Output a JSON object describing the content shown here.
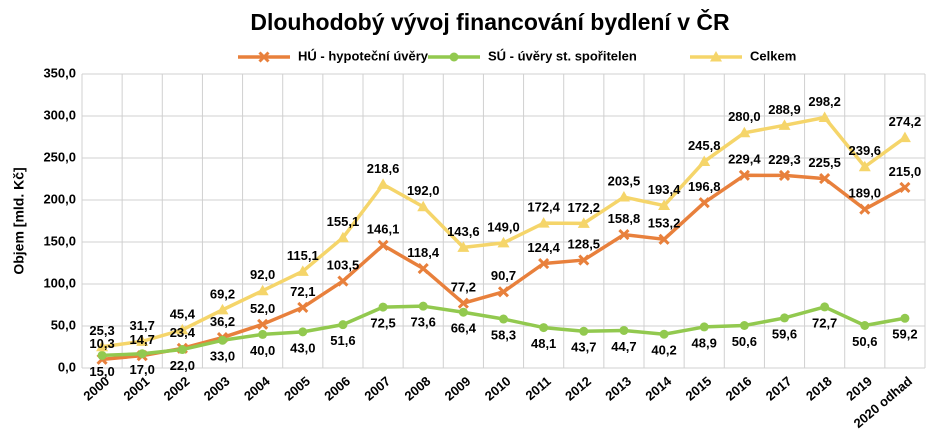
{
  "chart_data": {
    "type": "line",
    "title": "Dlouhodobý vývoj financování bydlení v ČR",
    "y_label": "Objem [mld. Kč]",
    "categories": [
      "2000",
      "2001",
      "2002",
      "2003",
      "2004",
      "2005",
      "2006",
      "2007",
      "2008",
      "2009",
      "2010",
      "2011",
      "2012",
      "2013",
      "2014",
      "2015",
      "2016",
      "2017",
      "2018",
      "2019",
      "2020 odhad"
    ],
    "series": [
      {
        "name": "HÚ - hypoteční úvěry",
        "color": "#e8803c",
        "marker": "x",
        "label_pos": "above",
        "values": [
          10.3,
          14.7,
          23.4,
          36.2,
          52.0,
          72.1,
          103.5,
          146.1,
          118.4,
          77.2,
          90.7,
          124.4,
          128.5,
          158.8,
          153.2,
          196.8,
          229.4,
          229.3,
          225.5,
          189.0,
          215.0
        ],
        "value_labels": [
          "10,3",
          "14,7",
          "23,4",
          "36,2",
          "52,0",
          "72,1",
          "103,5",
          "146,1",
          "118,4",
          "77,2",
          "90,7",
          "124,4",
          "128,5",
          "158,8",
          "153,2",
          "196,8",
          "229,4",
          "229,3",
          "225,5",
          "189,0",
          "215,0"
        ]
      },
      {
        "name": "SÚ - úvěry st. spořitelen",
        "color": "#92c94f",
        "marker": "circle",
        "label_pos": "below",
        "values": [
          15.0,
          17.0,
          22.0,
          33.0,
          40.0,
          43.0,
          51.6,
          72.5,
          73.6,
          66.4,
          58.3,
          48.1,
          43.7,
          44.7,
          40.2,
          48.9,
          50.6,
          59.6,
          72.7,
          50.6,
          59.2
        ],
        "value_labels": [
          "15,0",
          "17,0",
          "22,0",
          "33,0",
          "40,0",
          "43,0",
          "51,6",
          "72,5",
          "73,6",
          "66,4",
          "58,3",
          "48,1",
          "43,7",
          "44,7",
          "40,2",
          "48,9",
          "50,6",
          "59,6",
          "72,7",
          "50,6",
          "59,2"
        ]
      },
      {
        "name": "Celkem",
        "color": "#f5d56a",
        "marker": "triangle",
        "label_pos": "above",
        "values": [
          25.3,
          31.7,
          45.4,
          69.2,
          92.0,
          115.1,
          155.1,
          218.6,
          192.0,
          143.6,
          149.0,
          172.4,
          172.2,
          203.5,
          193.4,
          245.8,
          280.0,
          288.9,
          298.2,
          239.6,
          274.2
        ],
        "value_labels": [
          "25,3",
          "31,7",
          "45,4",
          "69,2",
          "92,0",
          "115,1",
          "155,1",
          "218,6",
          "192,0",
          "143,6",
          "149,0",
          "172,4",
          "172,2",
          "203,5",
          "193,4",
          "245,8",
          "280,0",
          "288,9",
          "298,2",
          "239,6",
          "274,2"
        ]
      }
    ],
    "ylim": [
      0,
      350
    ],
    "yticks": [
      {
        "value": 0,
        "label": "0,0"
      },
      {
        "value": 50,
        "label": "50,0"
      },
      {
        "value": 100,
        "label": "100,0"
      },
      {
        "value": 150,
        "label": "150,0"
      },
      {
        "value": 200,
        "label": "200,0"
      },
      {
        "value": 250,
        "label": "250,0"
      },
      {
        "value": 300,
        "label": "300,0"
      },
      {
        "value": 350,
        "label": "350,0"
      }
    ],
    "grid": true
  }
}
